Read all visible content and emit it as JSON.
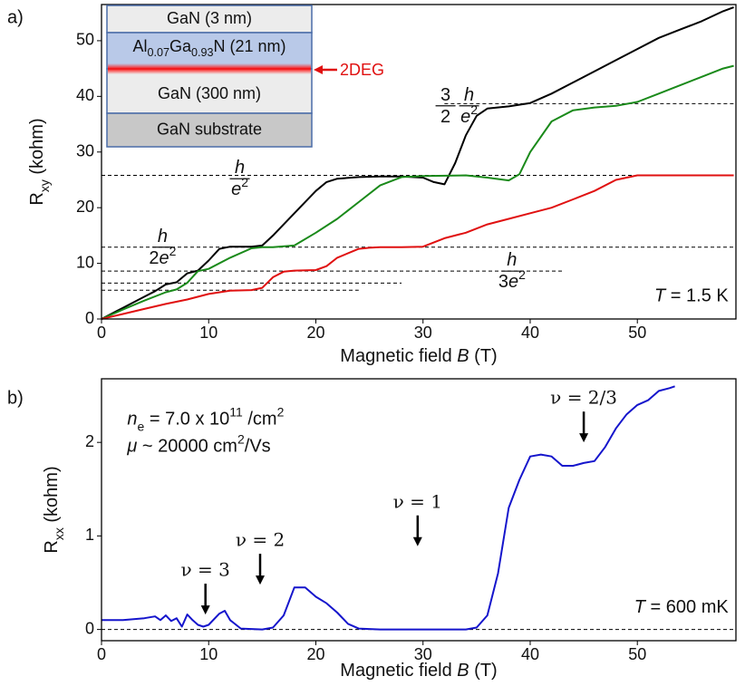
{
  "chart_data": [
    {
      "type": "line",
      "panel_label": "a)",
      "xlabel": [
        {
          "text": "Magnetic field "
        },
        {
          "text": "B",
          "style": "italic"
        },
        {
          "text": " (T)"
        }
      ],
      "ylabel": [
        {
          "text": "R"
        },
        {
          "text": "xy",
          "style": "sub"
        },
        {
          "text": " (kohm)"
        }
      ],
      "xlim": [
        0,
        59.2
      ],
      "ylim": [
        0,
        56.5
      ],
      "xticks": [
        0,
        10,
        20,
        30,
        40,
        50
      ],
      "yticks": [
        0,
        10,
        20,
        30,
        40,
        50
      ],
      "series": [
        {
          "color": "#000000",
          "x": [
            0,
            2,
            4,
            5,
            6,
            7,
            8,
            9,
            10,
            11,
            12,
            14,
            15,
            16,
            18,
            20,
            21,
            22,
            24,
            26,
            28,
            30,
            31,
            32,
            33,
            34,
            35,
            36,
            38,
            40,
            42,
            44,
            46,
            48,
            50,
            52,
            54,
            56,
            58,
            59
          ],
          "values": [
            0,
            2,
            4,
            5,
            6.2,
            6.6,
            8.2,
            8.7,
            10.5,
            12.6,
            13,
            13,
            13.2,
            15,
            19,
            23,
            24.6,
            25.2,
            25.5,
            25.6,
            25.6,
            25.4,
            24.6,
            24.2,
            28,
            33,
            36.5,
            37.8,
            38.2,
            38.8,
            40.5,
            42.5,
            44.5,
            46.5,
            48.5,
            50.5,
            52,
            53.5,
            55.3,
            56
          ]
        },
        {
          "color": "#1a8a1a",
          "x": [
            0,
            2,
            4,
            6,
            7,
            8,
            9,
            10,
            12,
            14,
            15,
            16,
            18,
            20,
            22,
            24,
            26,
            28,
            30,
            34,
            36,
            38,
            39,
            40,
            42,
            44,
            46,
            48,
            50,
            52,
            54,
            56,
            58,
            59
          ],
          "values": [
            0,
            1.7,
            3.3,
            4.8,
            5.3,
            6.5,
            8.6,
            9,
            11,
            12.7,
            12.9,
            12.9,
            13.2,
            15.5,
            18,
            21,
            24,
            25.5,
            25.7,
            25.8,
            25.4,
            24.9,
            26,
            30,
            35.5,
            37.5,
            38,
            38.3,
            39,
            40.5,
            42,
            43.5,
            45,
            45.5
          ]
        },
        {
          "color": "#e01010",
          "x": [
            0,
            2,
            4,
            6,
            8,
            10,
            12,
            14,
            15,
            16,
            17,
            18,
            20,
            21,
            22,
            24,
            25,
            26,
            28,
            30,
            32,
            34,
            36,
            38,
            40,
            42,
            44,
            46,
            48,
            50,
            52,
            54,
            56,
            59
          ],
          "values": [
            0,
            0.9,
            1.8,
            2.7,
            3.5,
            4.5,
            5.1,
            5.2,
            5.6,
            7.5,
            8.5,
            8.7,
            8.8,
            9.5,
            11,
            12.6,
            12.8,
            12.9,
            12.9,
            13,
            14.5,
            15.5,
            17,
            18,
            19,
            20,
            21.5,
            23,
            25,
            25.8,
            25.8,
            25.8,
            25.8,
            25.8
          ]
        }
      ],
      "reference_lines": [
        {
          "value": 38.7,
          "x": [
            32,
            59.2
          ]
        },
        {
          "value": 25.8,
          "x": [
            0,
            59.2
          ]
        },
        {
          "value": 12.9,
          "x": [
            0,
            59.2
          ]
        },
        {
          "value": 8.6,
          "x": [
            0,
            43
          ]
        },
        {
          "value": 6.45,
          "x": [
            0,
            28
          ]
        },
        {
          "value": 5.16,
          "x": [
            0,
            24
          ]
        }
      ],
      "fraction_labels": [
        {
          "x": 12.9,
          "y": 25.2,
          "fractions": [
            {
              "num": [
                {
                  "text": "h",
                  "style": "italic"
                }
              ],
              "den": [
                {
                  "text": "e",
                  "style": "italic"
                },
                {
                  "text": "2",
                  "style": "sup"
                }
              ]
            }
          ]
        },
        {
          "x": 5.7,
          "y": 12.9,
          "fractions": [
            {
              "num": [
                {
                  "text": "h",
                  "style": "italic"
                }
              ],
              "den": [
                {
                  "text": "2"
                },
                {
                  "text": "e",
                  "style": "italic"
                },
                {
                  "text": "2",
                  "style": "sup"
                }
              ]
            }
          ]
        },
        {
          "x": 38.3,
          "y": 8.6,
          "fractions": [
            {
              "num": [
                {
                  "text": "h",
                  "style": "italic"
                }
              ],
              "den": [
                {
                  "text": "3"
                },
                {
                  "text": "e",
                  "style": "italic"
                },
                {
                  "text": "2",
                  "style": "sup"
                }
              ]
            }
          ]
        },
        {
          "x": 33.2,
          "y": 38.3,
          "fractions": [
            {
              "num": [
                {
                  "text": "3"
                }
              ],
              "den": [
                {
                  "text": "2"
                }
              ]
            },
            {
              "num": [
                {
                  "text": "h",
                  "style": "italic"
                }
              ],
              "den": [
                {
                  "text": "e",
                  "style": "italic"
                },
                {
                  "text": "2",
                  "style": "sup"
                }
              ]
            }
          ]
        }
      ],
      "annotations": [
        {
          "x": 58.5,
          "y": 4,
          "parts": [
            {
              "text": "T",
              "style": "italic"
            },
            {
              "text": " = 1.5 K"
            }
          ]
        }
      ],
      "inset": {
        "layers": [
          [
            {
              "text": "GaN (3 nm)"
            }
          ],
          [
            {
              "text": "Al"
            },
            {
              "text": "0.07",
              "style": "sub"
            },
            {
              "text": "Ga"
            },
            {
              "text": "0.93",
              "style": "sub"
            },
            {
              "text": "N (21 nm)"
            }
          ],
          [
            {
              "text": "GaN (300 nm)"
            }
          ],
          [
            {
              "text": "GaN substrate"
            }
          ]
        ],
        "marker_label": "2DEG"
      }
    },
    {
      "type": "line",
      "panel_label": "b)",
      "xlabel": [
        {
          "text": "Magnetic field "
        },
        {
          "text": "B",
          "style": "italic"
        },
        {
          "text": " (T)"
        }
      ],
      "ylabel": [
        {
          "text": "R"
        },
        {
          "text": "xx",
          "style": "sub"
        },
        {
          "text": " (kohm)"
        }
      ],
      "xlim": [
        0,
        59.2
      ],
      "ylim": [
        -0.12,
        2.68
      ],
      "xticks": [
        0,
        10,
        20,
        30,
        40,
        50
      ],
      "yticks": [
        0,
        1,
        2
      ],
      "series": [
        {
          "color": "#1515cc",
          "x": [
            0,
            2,
            4,
            5,
            5.5,
            6,
            6.5,
            7,
            7.5,
            8,
            8.5,
            9,
            9.5,
            10,
            11,
            11.5,
            12,
            13,
            15,
            16,
            17,
            18,
            19,
            20,
            21,
            22,
            23,
            24,
            26,
            30,
            34,
            35,
            36,
            37,
            38,
            39,
            40,
            41,
            42,
            43,
            44,
            45,
            46,
            47,
            48,
            49,
            50,
            51,
            52,
            53,
            53.5
          ],
          "values": [
            0.1,
            0.1,
            0.12,
            0.14,
            0.1,
            0.15,
            0.09,
            0.12,
            0.03,
            0.16,
            0.1,
            0.05,
            0.03,
            0.05,
            0.17,
            0.2,
            0.1,
            0.01,
            0,
            0.02,
            0.15,
            0.45,
            0.45,
            0.35,
            0.28,
            0.18,
            0.06,
            0.01,
            0,
            0,
            0,
            0.02,
            0.15,
            0.6,
            1.3,
            1.6,
            1.85,
            1.87,
            1.85,
            1.75,
            1.75,
            1.78,
            1.8,
            1.95,
            2.15,
            2.3,
            2.4,
            2.45,
            2.55,
            2.58,
            2.6
          ]
        }
      ],
      "reference_lines": [
        {
          "value": 0,
          "x": [
            0,
            59.2
          ]
        }
      ],
      "arrows": [
        {
          "label": "ν = 3",
          "x": 9.7,
          "y": 0.16
        },
        {
          "label": "ν = 2",
          "x": 14.8,
          "y": 0.48
        },
        {
          "label": "ν = 1",
          "x": 29.5,
          "y": 0.89
        },
        {
          "label": "ν = 2/3",
          "x": 45,
          "y": 2.0
        }
      ],
      "annotations": [
        {
          "x": 2.4,
          "y": 2.24,
          "parts": [
            {
              "text": "n",
              "style": "italic"
            },
            {
              "text": "e",
              "style": "sub"
            },
            {
              "text": " = 7.0 x 10"
            },
            {
              "text": "11",
              "style": "sup"
            },
            {
              "text": " /cm"
            },
            {
              "text": "2",
              "style": "sup"
            }
          ]
        },
        {
          "x": 2.4,
          "y": 1.95,
          "parts": [
            {
              "text": "μ",
              "style": "italic"
            },
            {
              "text": " ~ 20000 cm"
            },
            {
              "text": "2",
              "style": "sup"
            },
            {
              "text": "/Vs"
            }
          ]
        },
        {
          "x": 58.5,
          "y": 0.23,
          "parts": [
            {
              "text": "T",
              "style": "italic"
            },
            {
              "text": " = 600 mK"
            }
          ]
        }
      ]
    }
  ]
}
